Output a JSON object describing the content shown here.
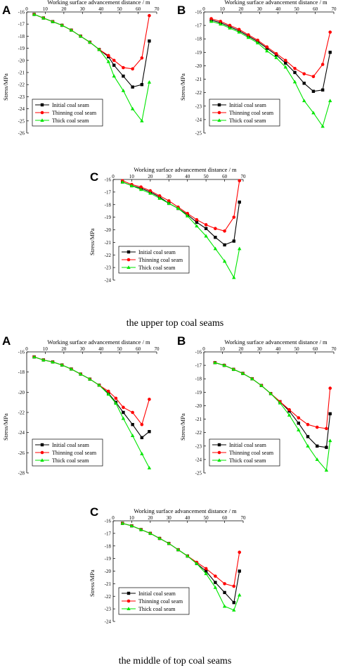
{
  "captions": {
    "upper": "the upper top coal seams",
    "middle": "the middle of top coal seams"
  },
  "legend_labels": [
    "Initial coal seam",
    "Thinning coal seam",
    "Thick coal seam"
  ],
  "series_colors": [
    "#000000",
    "#ff0000",
    "#00e600"
  ],
  "series_markers": [
    "square",
    "circle",
    "triangle"
  ],
  "chart_data": [
    {
      "id": "upper-A",
      "panel_letter": "A",
      "type": "line",
      "xlabel": "Working surface advancement distance / m",
      "ylabel": "Stress/MPa",
      "xlim": [
        0,
        70
      ],
      "xticks": [
        0,
        10,
        20,
        30,
        40,
        50,
        60,
        70
      ],
      "ylim": [
        -26,
        -16
      ],
      "yticks": [
        -16,
        -17,
        -18,
        -19,
        -20,
        -21,
        -22,
        -23,
        -24,
        -25,
        -26
      ],
      "legend_position": "bottom-left",
      "series": [
        {
          "name": "Initial coal seam",
          "x": [
            4,
            9,
            14,
            19,
            24,
            29,
            34,
            39,
            44,
            47,
            52,
            57,
            62,
            66
          ],
          "y": [
            -16.2,
            -16.5,
            -16.8,
            -17.1,
            -17.5,
            -18,
            -18.5,
            -19.1,
            -19.7,
            -20.4,
            -21.3,
            -22.2,
            -22.0,
            -18.4
          ]
        },
        {
          "name": "Thinning coal seam",
          "x": [
            4,
            9,
            14,
            19,
            24,
            29,
            34,
            39,
            44,
            47,
            52,
            57,
            62,
            66
          ],
          "y": [
            -16.2,
            -16.5,
            -16.8,
            -17.1,
            -17.5,
            -18,
            -18.5,
            -19.1,
            -19.6,
            -20.0,
            -20.6,
            -20.7,
            -19.8,
            -16.3
          ]
        },
        {
          "name": "Thick coal seam",
          "x": [
            4,
            9,
            14,
            19,
            24,
            29,
            34,
            39,
            44,
            47,
            52,
            57,
            62,
            66
          ],
          "y": [
            -16.2,
            -16.5,
            -16.8,
            -17.1,
            -17.5,
            -18,
            -18.5,
            -19.1,
            -20.1,
            -21.3,
            -22.5,
            -24.0,
            -25.0,
            -21.8
          ]
        }
      ]
    },
    {
      "id": "upper-B",
      "panel_letter": "B",
      "type": "line",
      "xlabel": "Working surface advancement distance / m",
      "ylabel": "Stress/MPa",
      "xlim": [
        0,
        70
      ],
      "xticks": [
        0,
        10,
        20,
        30,
        40,
        50,
        60,
        70
      ],
      "ylim": [
        -25,
        -16
      ],
      "yticks": [
        -16,
        -17,
        -18,
        -19,
        -20,
        -21,
        -22,
        -23,
        -24,
        -25
      ],
      "legend_position": "bottom-left",
      "series": [
        {
          "name": "Initial coal seam",
          "x": [
            4,
            9,
            14,
            19,
            24,
            29,
            34,
            39,
            44,
            49,
            54,
            59,
            64,
            68
          ],
          "y": [
            -16.6,
            -16.8,
            -17.1,
            -17.4,
            -17.8,
            -18.2,
            -18.7,
            -19.2,
            -19.8,
            -20.5,
            -21.3,
            -21.9,
            -21.8,
            -19.0
          ]
        },
        {
          "name": "Thinning coal seam",
          "x": [
            4,
            9,
            14,
            19,
            24,
            29,
            34,
            39,
            44,
            49,
            54,
            59,
            64,
            68
          ],
          "y": [
            -16.5,
            -16.7,
            -17.0,
            -17.3,
            -17.7,
            -18.1,
            -18.6,
            -19.1,
            -19.6,
            -20.2,
            -20.6,
            -20.8,
            -19.9,
            -17.5
          ]
        },
        {
          "name": "Thick coal seam",
          "x": [
            4,
            9,
            14,
            19,
            24,
            29,
            34,
            39,
            44,
            49,
            54,
            59,
            64,
            68
          ],
          "y": [
            -16.7,
            -16.9,
            -17.2,
            -17.5,
            -17.9,
            -18.3,
            -18.9,
            -19.4,
            -20.1,
            -21.2,
            -22.6,
            -23.5,
            -24.5,
            -22.6
          ]
        }
      ]
    },
    {
      "id": "upper-C",
      "panel_letter": "C",
      "type": "line",
      "xlabel": "Working surface advancement distance / m",
      "ylabel": "Stress/MPa",
      "xlim": [
        0,
        70
      ],
      "xticks": [
        0,
        10,
        20,
        30,
        40,
        50,
        60,
        70
      ],
      "ylim": [
        -24,
        -16
      ],
      "yticks": [
        -16,
        -17,
        -18,
        -19,
        -20,
        -21,
        -22,
        -23,
        -24
      ],
      "legend_position": "bottom-left",
      "series": [
        {
          "name": "Initial coal seam",
          "x": [
            5,
            10,
            15,
            20,
            25,
            30,
            35,
            40,
            45,
            50,
            55,
            60,
            65,
            68
          ],
          "y": [
            -16.2,
            -16.5,
            -16.7,
            -17.0,
            -17.4,
            -17.9,
            -18.3,
            -18.8,
            -19.4,
            -19.9,
            -20.6,
            -21.2,
            -20.9,
            -17.8
          ]
        },
        {
          "name": "Thinning coal seam",
          "x": [
            5,
            10,
            15,
            20,
            25,
            30,
            35,
            40,
            45,
            50,
            55,
            60,
            65,
            68
          ],
          "y": [
            -16.1,
            -16.4,
            -16.6,
            -16.9,
            -17.3,
            -17.7,
            -18.2,
            -18.7,
            -19.2,
            -19.6,
            -19.9,
            -20.1,
            -19.0,
            -16.1
          ]
        },
        {
          "name": "Thick coal seam",
          "x": [
            5,
            10,
            15,
            20,
            25,
            30,
            35,
            40,
            45,
            50,
            55,
            60,
            65,
            68
          ],
          "y": [
            -16.2,
            -16.5,
            -16.8,
            -17.1,
            -17.5,
            -17.9,
            -18.3,
            -18.9,
            -19.7,
            -20.5,
            -21.5,
            -22.5,
            -23.8,
            -21.5
          ]
        }
      ]
    },
    {
      "id": "middle-A",
      "panel_letter": "A",
      "type": "line",
      "xlabel": "Working surface advancement distance / m",
      "ylabel": "Stress/MPa",
      "xlim": [
        0,
        70
      ],
      "xticks": [
        0,
        10,
        20,
        30,
        40,
        50,
        60,
        70
      ],
      "ylim": [
        -28,
        -16
      ],
      "yticks": [
        -16,
        -18,
        -20,
        -22,
        -24,
        -26,
        -28
      ],
      "legend_position": "bottom-left",
      "series": [
        {
          "name": "Initial coal seam",
          "x": [
            4,
            9,
            14,
            19,
            24,
            29,
            34,
            39,
            44,
            48,
            52,
            57,
            62,
            66
          ],
          "y": [
            -16.5,
            -16.8,
            -17.0,
            -17.3,
            -17.7,
            -18.2,
            -18.7,
            -19.3,
            -20.1,
            -21.0,
            -22.0,
            -23.2,
            -24.5,
            -23.9
          ]
        },
        {
          "name": "Thinning coal seam",
          "x": [
            4,
            9,
            14,
            19,
            24,
            29,
            34,
            39,
            44,
            48,
            52,
            57,
            62,
            66
          ],
          "y": [
            -16.5,
            -16.8,
            -17.0,
            -17.3,
            -17.7,
            -18.2,
            -18.7,
            -19.3,
            -19.9,
            -20.6,
            -21.5,
            -22.0,
            -23.2,
            -20.7
          ]
        },
        {
          "name": "Thick coal seam",
          "x": [
            4,
            9,
            14,
            19,
            24,
            29,
            34,
            39,
            44,
            48,
            52,
            57,
            62,
            66
          ],
          "y": [
            -16.5,
            -16.8,
            -17.0,
            -17.3,
            -17.7,
            -18.2,
            -18.7,
            -19.3,
            -20.2,
            -21.1,
            -22.6,
            -24.3,
            -26.1,
            -27.5
          ]
        }
      ]
    },
    {
      "id": "middle-B",
      "panel_letter": "B",
      "type": "line",
      "xlabel": "Working surface advancement distance / m",
      "ylabel": "Stress/MPa",
      "xlim": [
        0,
        70
      ],
      "xticks": [
        0,
        10,
        20,
        30,
        40,
        50,
        60,
        70
      ],
      "ylim": [
        -25,
        -16
      ],
      "yticks": [
        -16,
        -17,
        -18,
        -19,
        -20,
        -21,
        -22,
        -23,
        -24,
        -25
      ],
      "legend_position": "bottom-left",
      "series": [
        {
          "name": "Initial coal seam",
          "x": [
            6,
            11,
            16,
            21,
            26,
            31,
            36,
            41,
            46,
            51,
            56,
            61,
            66,
            68
          ],
          "y": [
            -16.8,
            -17.0,
            -17.3,
            -17.6,
            -18.0,
            -18.5,
            -19.1,
            -19.7,
            -20.4,
            -21.3,
            -22.3,
            -23.0,
            -23.1,
            -20.6
          ]
        },
        {
          "name": "Thinning coal seam",
          "x": [
            6,
            11,
            16,
            21,
            26,
            31,
            36,
            41,
            46,
            51,
            56,
            61,
            66,
            68
          ],
          "y": [
            -16.8,
            -17.0,
            -17.3,
            -17.6,
            -18.0,
            -18.5,
            -19.1,
            -19.7,
            -20.3,
            -20.9,
            -21.4,
            -21.6,
            -21.7,
            -18.7
          ]
        },
        {
          "name": "Thick coal seam",
          "x": [
            6,
            11,
            16,
            21,
            26,
            31,
            36,
            41,
            46,
            51,
            56,
            61,
            66,
            68
          ],
          "y": [
            -16.8,
            -17.0,
            -17.3,
            -17.6,
            -18.0,
            -18.5,
            -19.1,
            -19.8,
            -20.7,
            -21.8,
            -23.0,
            -24.0,
            -24.8,
            -22.6
          ]
        }
      ]
    },
    {
      "id": "middle-C",
      "panel_letter": "C",
      "type": "line",
      "xlabel": "Working surface advancement distance / m",
      "ylabel": "Stress/MPa",
      "xlim": [
        0,
        70
      ],
      "xticks": [
        0,
        10,
        20,
        30,
        40,
        50,
        60,
        70
      ],
      "ylim": [
        -24,
        -16
      ],
      "yticks": [
        -16,
        -17,
        -18,
        -19,
        -20,
        -21,
        -22,
        -23,
        -24
      ],
      "legend_position": "bottom-left",
      "series": [
        {
          "name": "Initial coal seam",
          "x": [
            5,
            10,
            15,
            20,
            25,
            30,
            35,
            40,
            45,
            50,
            55,
            60,
            65,
            68
          ],
          "y": [
            -16.2,
            -16.4,
            -16.7,
            -17.0,
            -17.4,
            -17.8,
            -18.3,
            -18.8,
            -19.4,
            -20.0,
            -20.9,
            -21.7,
            -22.5,
            -20.0
          ]
        },
        {
          "name": "Thinning coal seam",
          "x": [
            5,
            10,
            15,
            20,
            25,
            30,
            35,
            40,
            45,
            50,
            55,
            60,
            65,
            68
          ],
          "y": [
            -16.2,
            -16.4,
            -16.7,
            -17.0,
            -17.4,
            -17.8,
            -18.3,
            -18.8,
            -19.3,
            -19.8,
            -20.4,
            -21.0,
            -21.2,
            -18.5
          ]
        },
        {
          "name": "Thick coal seam",
          "x": [
            5,
            10,
            15,
            20,
            25,
            30,
            35,
            40,
            45,
            50,
            55,
            60,
            65,
            68
          ],
          "y": [
            -16.2,
            -16.4,
            -16.7,
            -17.0,
            -17.4,
            -17.8,
            -18.3,
            -18.8,
            -19.4,
            -20.2,
            -21.3,
            -22.8,
            -23.1,
            -21.9
          ]
        }
      ]
    }
  ]
}
